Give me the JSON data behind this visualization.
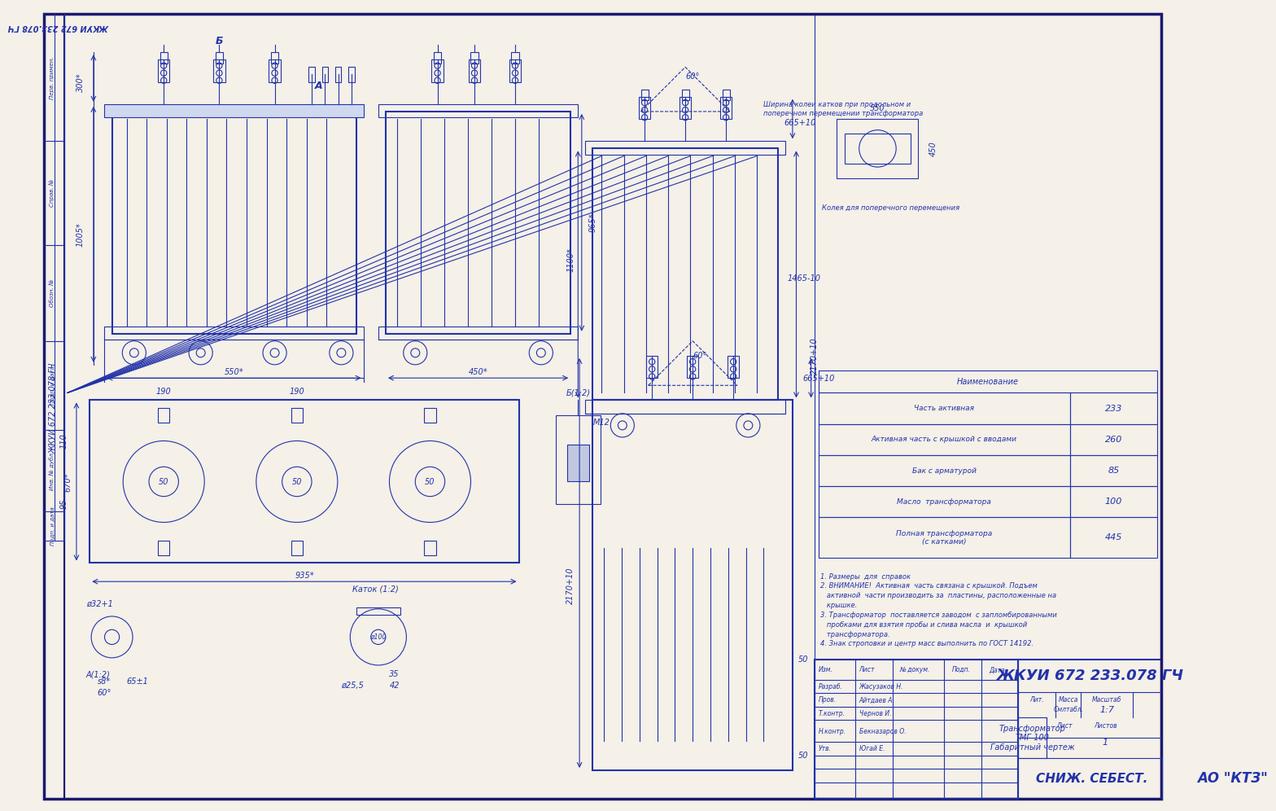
{
  "bg_color": "#f5f0e8",
  "line_color": "#1a1a6e",
  "drawing_line_color": "#2233aa",
  "title": "ЖКУИ 672 233.078 ГЧ",
  "doc_name": "Трансформатор\nТМГ-100\nГабаритный чертеж",
  "company": "АО \"КТЗ\"",
  "stamp_text": "СНИЖ. СЕБЕСТ.",
  "header_rotated": "ЖКУИ 672 233.078 ГЧ",
  "table_header": "Наименование",
  "table_rows": [
    [
      "Часть активная",
      "233"
    ],
    [
      "Активная часть с крышкой с вводами",
      "260"
    ],
    [
      "Бак с арматурой",
      "85"
    ],
    [
      "Масло  трансформатора",
      "100"
    ],
    [
      "Полная трансформатора\n(с катками)",
      "445"
    ]
  ],
  "notes": [
    "1. Размеры  для  справок",
    "2. ВНИМАНИЕ!  Активная  часть связана с крышкой. Подъем",
    "   активной  части производить за  пластины, расположенные на",
    "   крышке.",
    "3. Трансформатор  поставляется заводом  с запломбированными",
    "   пробками для взятия пробы и слива масла  и  крышкой",
    "   трансформатора.",
    "4. Знак строповки и центр масс выполнить по ГОСТ 14192."
  ],
  "wheel_note1": "Ширина колеи катков при продольном и",
  "wheel_note2": "поперечном перемещении трансформатора",
  "wheel_note3": "Колея для поперечного перемещения",
  "stamp_rows": [
    [
      "Изм.",
      "Лист",
      "№ докум.",
      "Подп.",
      "Дата"
    ],
    [
      "Разраб.",
      "Жасузаков Н."
    ],
    [
      "Пров.",
      "Айтдаев А."
    ],
    [
      "Т.контр.",
      "Чернов И."
    ],
    [
      "Н.контр.",
      "Бекназаров О."
    ],
    [
      "Утв.",
      "Югай Е."
    ]
  ]
}
